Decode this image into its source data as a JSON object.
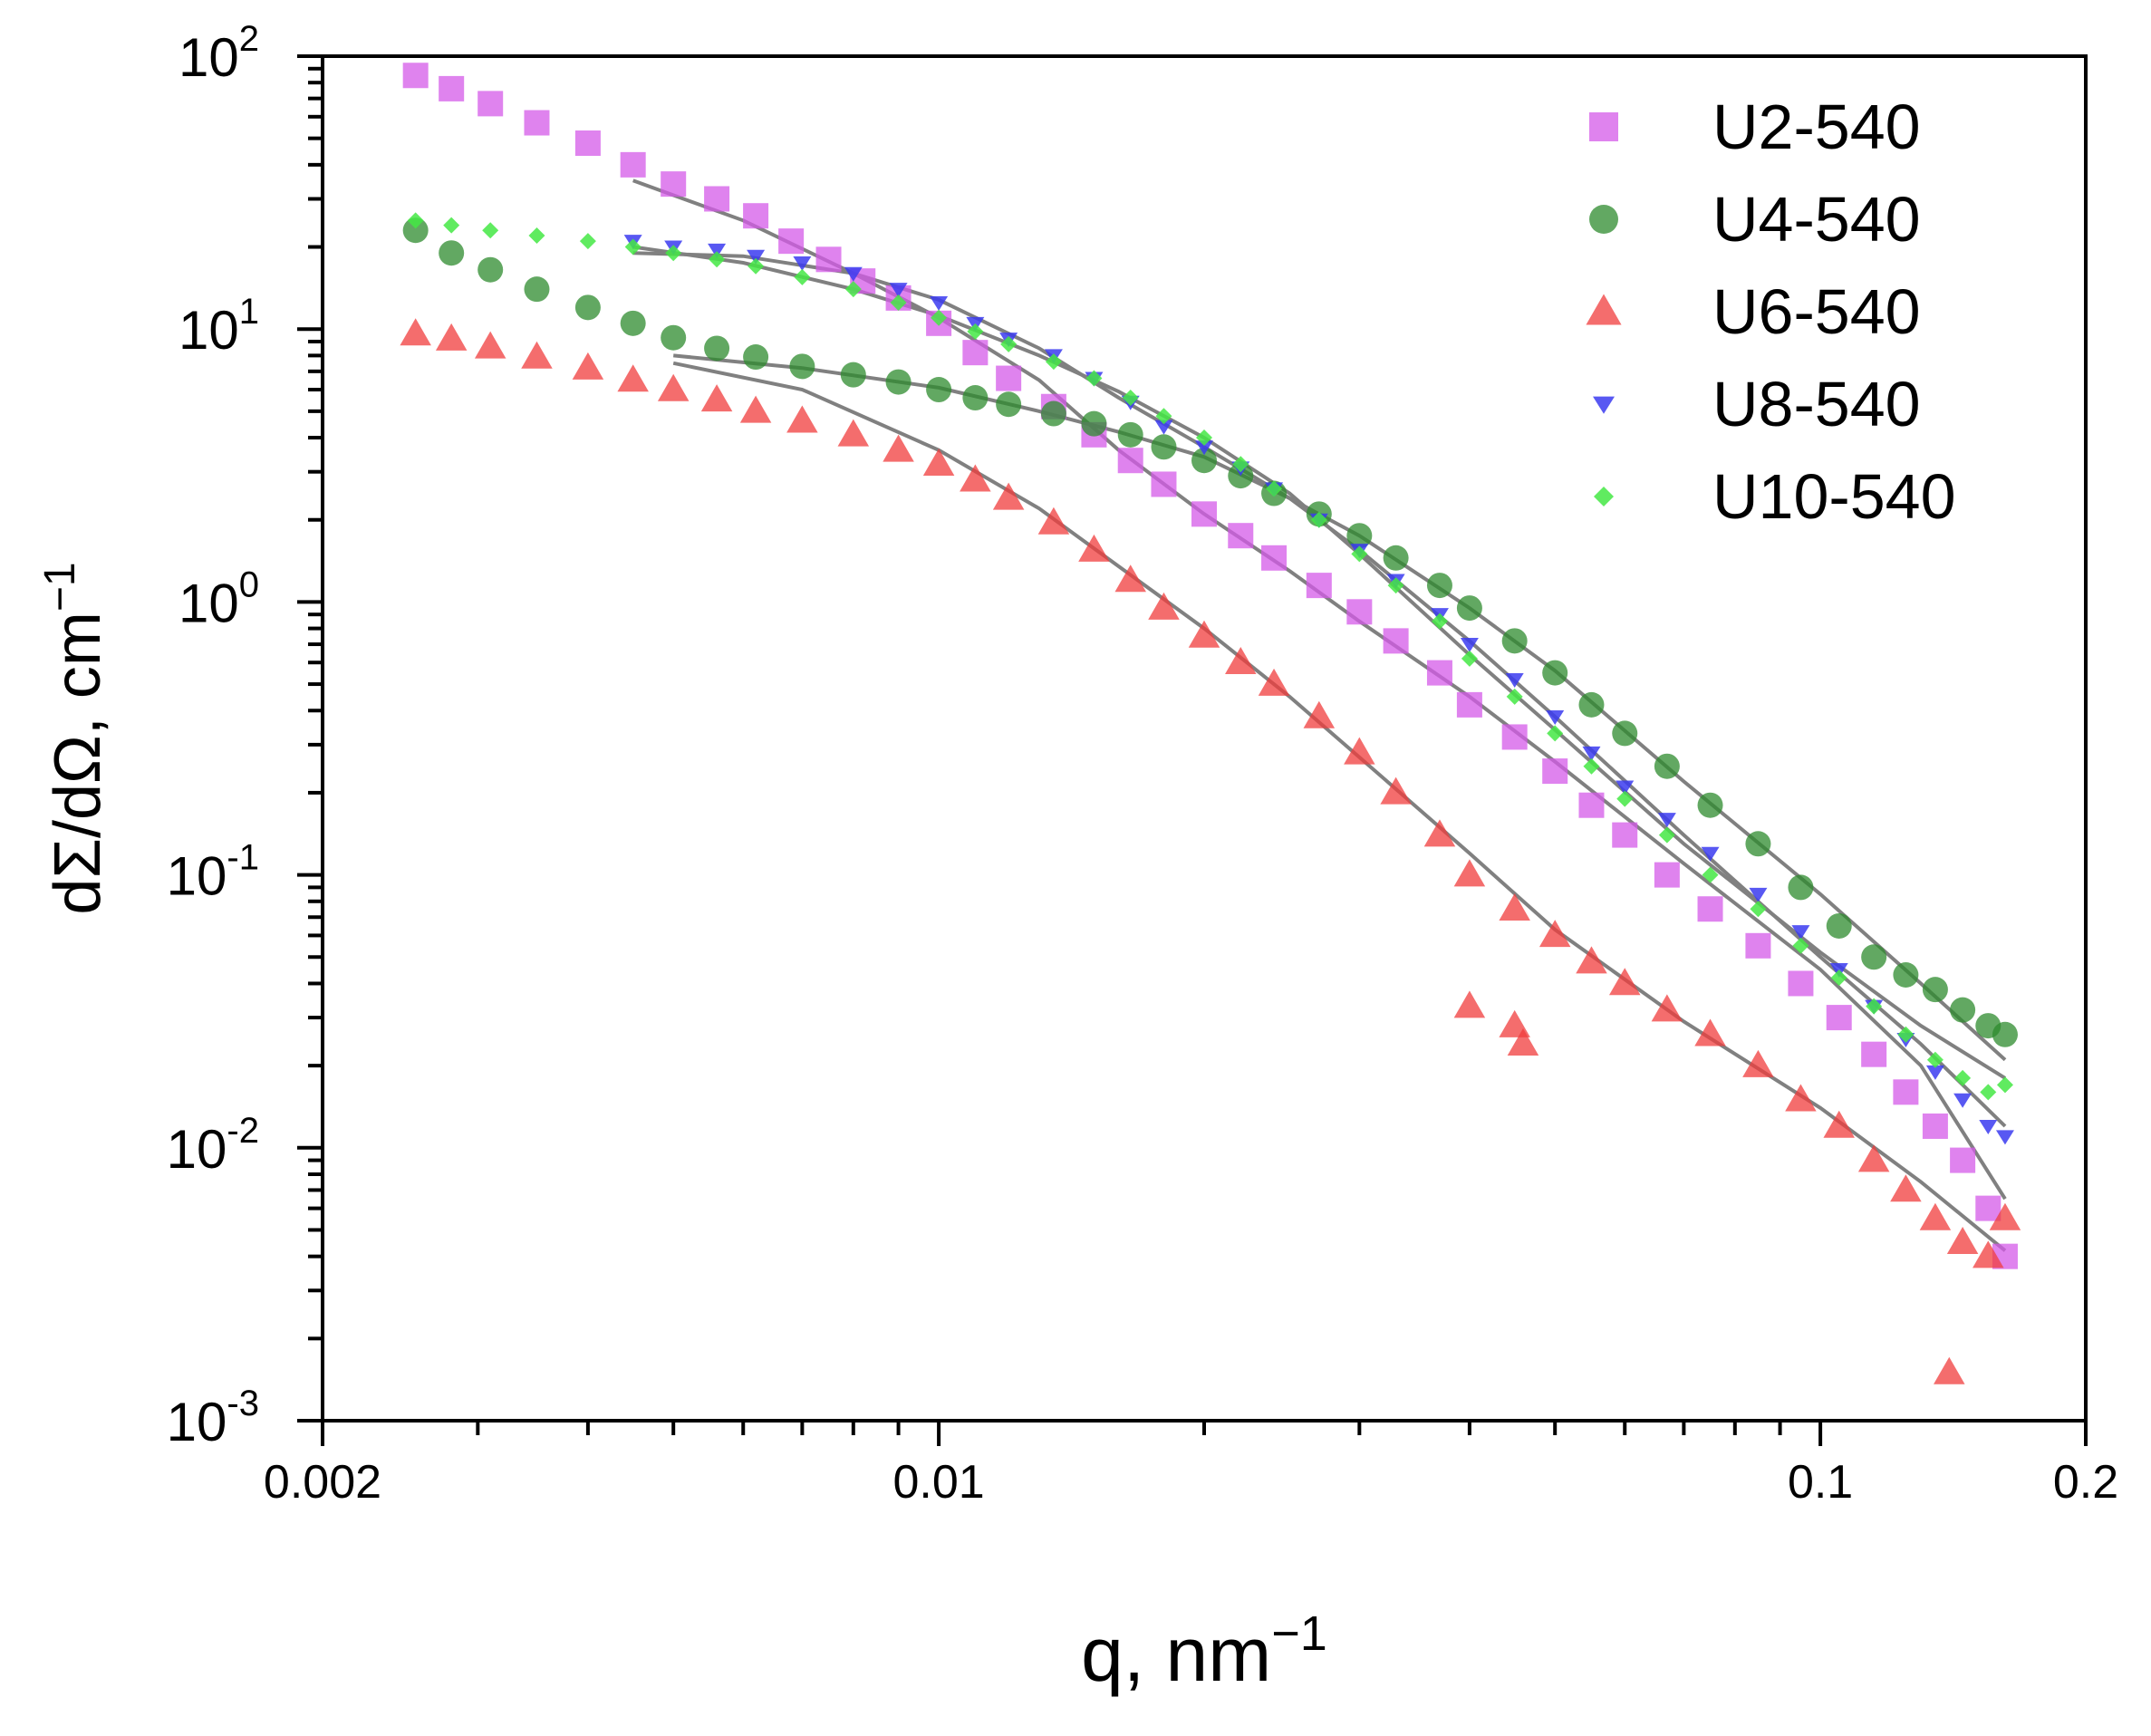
{
  "chart_data": {
    "type": "scatter",
    "title": "",
    "xlabel": "q, nm",
    "xlabel_exponent": "−1",
    "ylabel": "dΣ/dΩ, cm",
    "ylabel_exponent": "−1",
    "xscale": "log",
    "yscale": "log",
    "xlim": [
      0.002,
      0.2
    ],
    "ylim": [
      0.001,
      100
    ],
    "x_tick_labels": [
      {
        "value": 0.002,
        "label": "0.002"
      },
      {
        "value": 0.01,
        "label": "0.01"
      },
      {
        "value": 0.1,
        "label": "0.1"
      },
      {
        "value": 0.2,
        "label": "0.2"
      }
    ],
    "y_tick_labels": [
      {
        "value": 0.001,
        "base": "10",
        "exp": "-3"
      },
      {
        "value": 0.01,
        "base": "10",
        "exp": "-2"
      },
      {
        "value": 0.1,
        "base": "10",
        "exp": "-1"
      },
      {
        "value": 1,
        "base": "10",
        "exp": "0"
      },
      {
        "value": 10,
        "base": "10",
        "exp": "1"
      },
      {
        "value": 100,
        "base": "10",
        "exp": "2"
      }
    ],
    "legend_position": "top-right",
    "fit_color": "#808080",
    "series": [
      {
        "name": "U2-540",
        "marker": "square",
        "color": "#d45ae8",
        "points": [
          [
            0.00255,
            85
          ],
          [
            0.0028,
            76
          ],
          [
            0.0031,
            67
          ],
          [
            0.0035,
            57
          ],
          [
            0.004,
            48
          ],
          [
            0.0045,
            40
          ],
          [
            0.005,
            34
          ],
          [
            0.0056,
            30
          ],
          [
            0.0062,
            26
          ],
          [
            0.0068,
            21
          ],
          [
            0.0075,
            18
          ],
          [
            0.0082,
            15
          ],
          [
            0.009,
            13
          ],
          [
            0.01,
            10.5
          ],
          [
            0.011,
            8.2
          ],
          [
            0.012,
            6.6
          ],
          [
            0.0135,
            5.2
          ],
          [
            0.015,
            4.1
          ],
          [
            0.0165,
            3.3
          ],
          [
            0.018,
            2.7
          ],
          [
            0.02,
            2.1
          ],
          [
            0.022,
            1.75
          ],
          [
            0.024,
            1.45
          ],
          [
            0.027,
            1.15
          ],
          [
            0.03,
            0.92
          ],
          [
            0.033,
            0.72
          ],
          [
            0.037,
            0.55
          ],
          [
            0.04,
            0.42
          ],
          [
            0.045,
            0.32
          ],
          [
            0.05,
            0.24
          ],
          [
            0.055,
            0.18
          ],
          [
            0.06,
            0.14
          ],
          [
            0.067,
            0.1
          ],
          [
            0.075,
            0.075
          ],
          [
            0.085,
            0.055
          ],
          [
            0.095,
            0.04
          ],
          [
            0.105,
            0.03
          ],
          [
            0.115,
            0.022
          ],
          [
            0.125,
            0.016
          ],
          [
            0.135,
            0.012
          ],
          [
            0.145,
            0.009
          ],
          [
            0.155,
            0.006
          ],
          [
            0.162,
            0.004
          ]
        ]
      },
      {
        "name": "U4-540",
        "marker": "circle",
        "color": "#2e8b2e",
        "points": [
          [
            0.00255,
            23
          ],
          [
            0.0028,
            19
          ],
          [
            0.0031,
            16.5
          ],
          [
            0.0035,
            14
          ],
          [
            0.004,
            12
          ],
          [
            0.0045,
            10.5
          ],
          [
            0.005,
            9.3
          ],
          [
            0.0056,
            8.5
          ],
          [
            0.0062,
            7.9
          ],
          [
            0.007,
            7.3
          ],
          [
            0.008,
            6.8
          ],
          [
            0.009,
            6.4
          ],
          [
            0.01,
            6
          ],
          [
            0.011,
            5.6
          ],
          [
            0.012,
            5.3
          ],
          [
            0.0135,
            4.9
          ],
          [
            0.015,
            4.5
          ],
          [
            0.0165,
            4.1
          ],
          [
            0.018,
            3.7
          ],
          [
            0.02,
            3.3
          ],
          [
            0.022,
            2.9
          ],
          [
            0.024,
            2.5
          ],
          [
            0.027,
            2.1
          ],
          [
            0.03,
            1.75
          ],
          [
            0.033,
            1.45
          ],
          [
            0.037,
            1.15
          ],
          [
            0.04,
            0.95
          ],
          [
            0.045,
            0.72
          ],
          [
            0.05,
            0.55
          ],
          [
            0.055,
            0.42
          ],
          [
            0.06,
            0.33
          ],
          [
            0.067,
            0.25
          ],
          [
            0.075,
            0.18
          ],
          [
            0.085,
            0.13
          ],
          [
            0.095,
            0.09
          ],
          [
            0.105,
            0.065
          ],
          [
            0.115,
            0.05
          ],
          [
            0.125,
            0.043
          ],
          [
            0.135,
            0.038
          ],
          [
            0.145,
            0.032
          ],
          [
            0.155,
            0.028
          ],
          [
            0.162,
            0.026
          ]
        ]
      },
      {
        "name": "U6-540",
        "marker": "triangle",
        "color": "#f03c3c",
        "points": [
          [
            0.00255,
            9.6
          ],
          [
            0.0028,
            9.2
          ],
          [
            0.0031,
            8.6
          ],
          [
            0.0035,
            7.9
          ],
          [
            0.004,
            7.2
          ],
          [
            0.0045,
            6.5
          ],
          [
            0.005,
            6
          ],
          [
            0.0056,
            5.5
          ],
          [
            0.0062,
            5
          ],
          [
            0.007,
            4.6
          ],
          [
            0.008,
            4.1
          ],
          [
            0.009,
            3.6
          ],
          [
            0.01,
            3.2
          ],
          [
            0.011,
            2.8
          ],
          [
            0.012,
            2.4
          ],
          [
            0.0135,
            1.95
          ],
          [
            0.015,
            1.55
          ],
          [
            0.0165,
            1.2
          ],
          [
            0.018,
            0.95
          ],
          [
            0.02,
            0.75
          ],
          [
            0.022,
            0.6
          ],
          [
            0.024,
            0.5
          ],
          [
            0.027,
            0.38
          ],
          [
            0.03,
            0.28
          ],
          [
            0.033,
            0.2
          ],
          [
            0.037,
            0.14
          ],
          [
            0.04,
            0.1
          ],
          [
            0.045,
            0.075
          ],
          [
            0.05,
            0.06
          ],
          [
            0.055,
            0.048
          ],
          [
            0.06,
            0.04
          ],
          [
            0.067,
            0.032
          ],
          [
            0.075,
            0.026
          ],
          [
            0.085,
            0.02
          ],
          [
            0.095,
            0.015
          ],
          [
            0.105,
            0.012
          ],
          [
            0.115,
            0.009
          ],
          [
            0.125,
            0.007
          ],
          [
            0.135,
            0.0055
          ],
          [
            0.145,
            0.0045
          ],
          [
            0.155,
            0.004
          ],
          [
            0.162,
            0.0055
          ],
          [
            0.04,
            0.033
          ],
          [
            0.045,
            0.028
          ],
          [
            0.046,
            0.024
          ],
          [
            0.14,
            0.0015
          ]
        ]
      },
      {
        "name": "U8-540",
        "marker": "triangle-down",
        "color": "#3b3bf0",
        "points": [
          [
            0.0045,
            21
          ],
          [
            0.005,
            20
          ],
          [
            0.0056,
            19.5
          ],
          [
            0.0062,
            18.5
          ],
          [
            0.007,
            17.5
          ],
          [
            0.008,
            16
          ],
          [
            0.009,
            14
          ],
          [
            0.01,
            12.5
          ],
          [
            0.011,
            10.5
          ],
          [
            0.012,
            9.2
          ],
          [
            0.0135,
            8
          ],
          [
            0.015,
            6.6
          ],
          [
            0.0165,
            5.4
          ],
          [
            0.018,
            4.4
          ],
          [
            0.02,
            3.7
          ],
          [
            0.022,
            3.1
          ],
          [
            0.024,
            2.6
          ],
          [
            0.027,
            2
          ],
          [
            0.03,
            1.55
          ],
          [
            0.033,
            1.2
          ],
          [
            0.037,
            0.9
          ],
          [
            0.04,
            0.7
          ],
          [
            0.045,
            0.52
          ],
          [
            0.05,
            0.38
          ],
          [
            0.055,
            0.28
          ],
          [
            0.06,
            0.21
          ],
          [
            0.067,
            0.16
          ],
          [
            0.075,
            0.12
          ],
          [
            0.085,
            0.085
          ],
          [
            0.095,
            0.062
          ],
          [
            0.105,
            0.045
          ],
          [
            0.115,
            0.033
          ],
          [
            0.125,
            0.025
          ],
          [
            0.135,
            0.019
          ],
          [
            0.145,
            0.015
          ],
          [
            0.155,
            0.012
          ],
          [
            0.162,
            0.011
          ]
        ]
      },
      {
        "name": "U10-540",
        "marker": "diamond",
        "color": "#44e844",
        "points": [
          [
            0.00255,
            25
          ],
          [
            0.0028,
            24
          ],
          [
            0.0031,
            23
          ],
          [
            0.0035,
            22
          ],
          [
            0.004,
            21
          ],
          [
            0.0045,
            20
          ],
          [
            0.005,
            19
          ],
          [
            0.0056,
            18
          ],
          [
            0.0062,
            17
          ],
          [
            0.007,
            15.5
          ],
          [
            0.008,
            14
          ],
          [
            0.009,
            12.5
          ],
          [
            0.01,
            11
          ],
          [
            0.011,
            9.8
          ],
          [
            0.012,
            8.8
          ],
          [
            0.0135,
            7.6
          ],
          [
            0.015,
            6.6
          ],
          [
            0.0165,
            5.6
          ],
          [
            0.018,
            4.8
          ],
          [
            0.02,
            4
          ],
          [
            0.022,
            3.2
          ],
          [
            0.024,
            2.6
          ],
          [
            0.027,
            2
          ],
          [
            0.03,
            1.5
          ],
          [
            0.033,
            1.15
          ],
          [
            0.037,
            0.85
          ],
          [
            0.04,
            0.62
          ],
          [
            0.045,
            0.45
          ],
          [
            0.05,
            0.33
          ],
          [
            0.055,
            0.25
          ],
          [
            0.06,
            0.19
          ],
          [
            0.067,
            0.14
          ],
          [
            0.075,
            0.1
          ],
          [
            0.085,
            0.075
          ],
          [
            0.095,
            0.055
          ],
          [
            0.105,
            0.042
          ],
          [
            0.115,
            0.033
          ],
          [
            0.125,
            0.026
          ],
          [
            0.135,
            0.021
          ],
          [
            0.145,
            0.018
          ],
          [
            0.155,
            0.016
          ],
          [
            0.162,
            0.017
          ]
        ]
      }
    ],
    "fits": [
      {
        "name": "U2-540 fit",
        "points": [
          [
            0.0045,
            35
          ],
          [
            0.006,
            25
          ],
          [
            0.008,
            16
          ],
          [
            0.01,
            11
          ],
          [
            0.013,
            6.5
          ],
          [
            0.016,
            3.6
          ],
          [
            0.02,
            2.1
          ],
          [
            0.025,
            1.3
          ],
          [
            0.03,
            0.85
          ],
          [
            0.04,
            0.45
          ],
          [
            0.05,
            0.26
          ],
          [
            0.07,
            0.11
          ],
          [
            0.1,
            0.045
          ],
          [
            0.13,
            0.02
          ],
          [
            0.162,
            0.0065
          ]
        ]
      },
      {
        "name": "U4-540 fit",
        "points": [
          [
            0.005,
            8
          ],
          [
            0.007,
            7.2
          ],
          [
            0.01,
            6.1
          ],
          [
            0.013,
            5
          ],
          [
            0.016,
            4.2
          ],
          [
            0.02,
            3.4
          ],
          [
            0.025,
            2.4
          ],
          [
            0.03,
            1.75
          ],
          [
            0.04,
            0.95
          ],
          [
            0.05,
            0.56
          ],
          [
            0.07,
            0.22
          ],
          [
            0.1,
            0.085
          ],
          [
            0.13,
            0.04
          ],
          [
            0.162,
            0.021
          ]
        ]
      },
      {
        "name": "U6-540 fit",
        "points": [
          [
            0.005,
            7.5
          ],
          [
            0.007,
            6
          ],
          [
            0.01,
            3.6
          ],
          [
            0.013,
            2.2
          ],
          [
            0.016,
            1.35
          ],
          [
            0.02,
            0.8
          ],
          [
            0.025,
            0.45
          ],
          [
            0.03,
            0.27
          ],
          [
            0.04,
            0.12
          ],
          [
            0.05,
            0.063
          ],
          [
            0.07,
            0.029
          ],
          [
            0.1,
            0.014
          ],
          [
            0.13,
            0.0075
          ],
          [
            0.162,
            0.0042
          ]
        ]
      },
      {
        "name": "U8-540 fit",
        "points": [
          [
            0.0045,
            19
          ],
          [
            0.006,
            18.5
          ],
          [
            0.008,
            16
          ],
          [
            0.01,
            12.8
          ],
          [
            0.013,
            8.5
          ],
          [
            0.016,
            5.6
          ],
          [
            0.02,
            3.7
          ],
          [
            0.025,
            2.4
          ],
          [
            0.03,
            1.55
          ],
          [
            0.04,
            0.72
          ],
          [
            0.05,
            0.38
          ],
          [
            0.07,
            0.14
          ],
          [
            0.1,
            0.05
          ],
          [
            0.13,
            0.024
          ],
          [
            0.162,
            0.012
          ]
        ]
      },
      {
        "name": "U10-540 fit",
        "points": [
          [
            0.0045,
            20
          ],
          [
            0.006,
            17.5
          ],
          [
            0.008,
            14
          ],
          [
            0.01,
            11.2
          ],
          [
            0.013,
            8
          ],
          [
            0.016,
            5.9
          ],
          [
            0.02,
            4
          ],
          [
            0.025,
            2.5
          ],
          [
            0.03,
            1.5
          ],
          [
            0.04,
            0.64
          ],
          [
            0.05,
            0.34
          ],
          [
            0.07,
            0.13
          ],
          [
            0.1,
            0.052
          ],
          [
            0.13,
            0.028
          ],
          [
            0.162,
            0.018
          ]
        ]
      }
    ]
  }
}
